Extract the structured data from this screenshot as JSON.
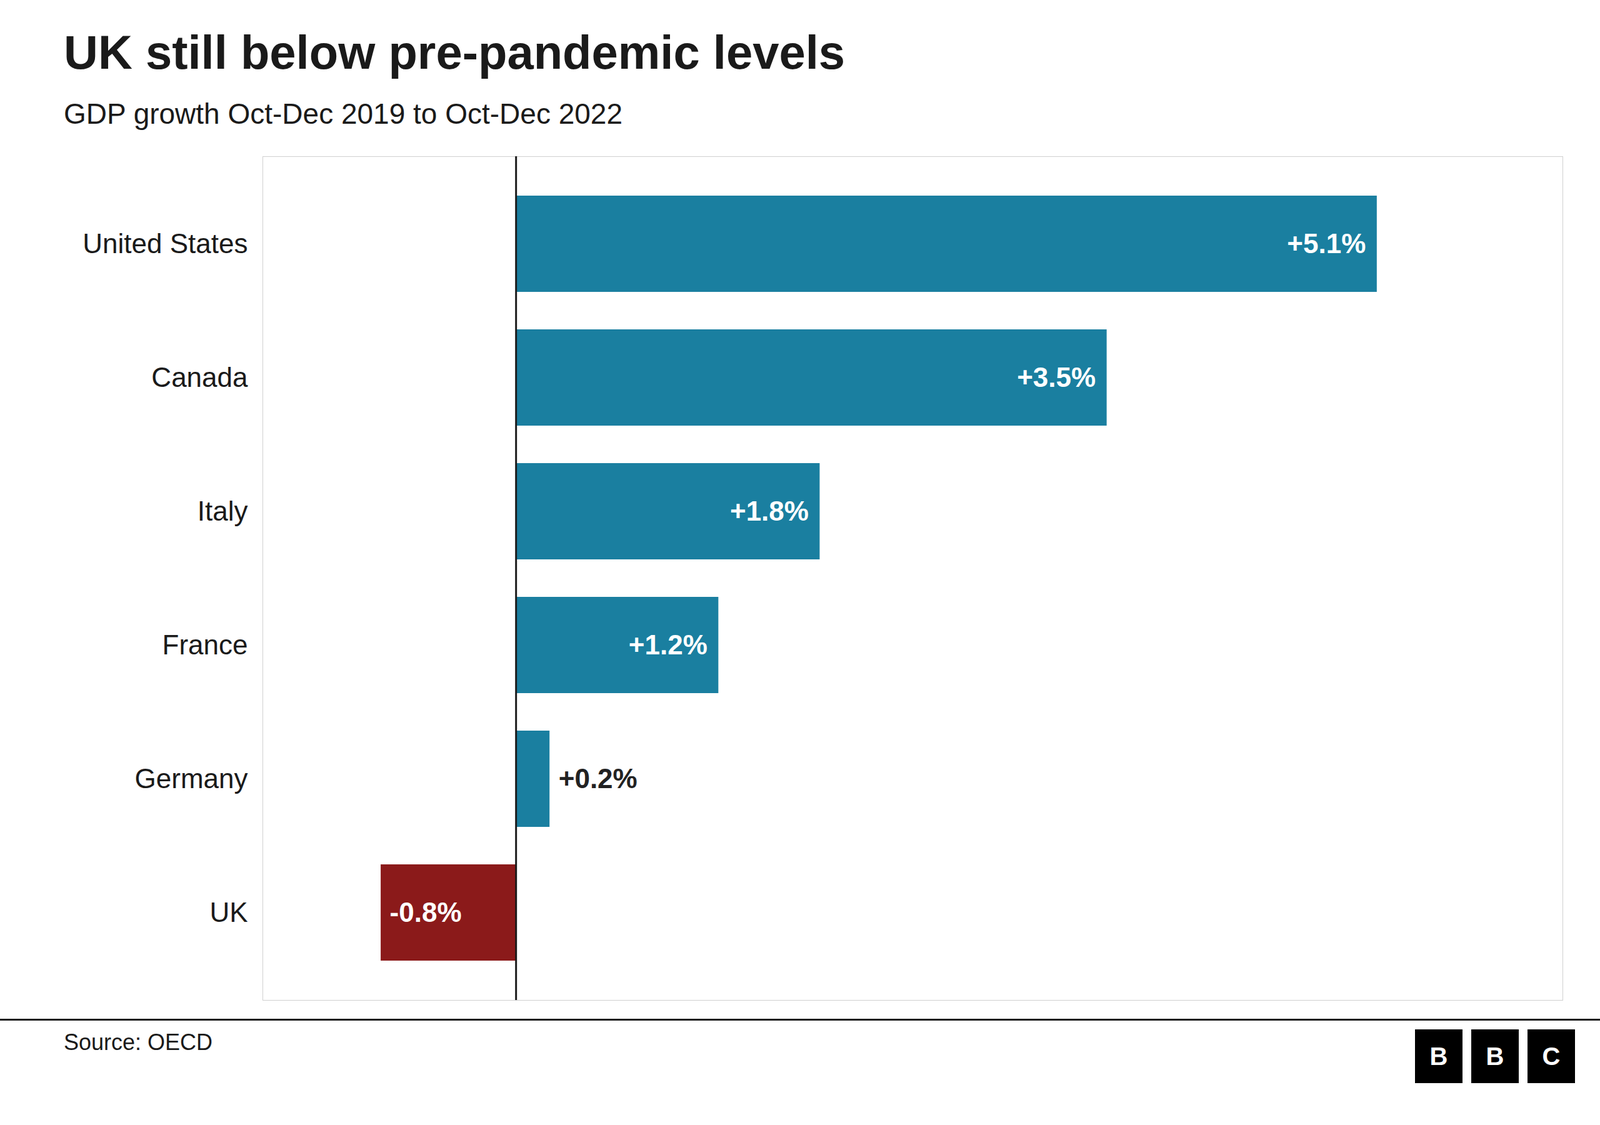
{
  "chart_data": {
    "type": "bar",
    "orientation": "horizontal",
    "title": "UK still below pre-pandemic levels",
    "subtitle": "GDP growth Oct-Dec 2019 to Oct-Dec 2022",
    "source": "Source: OECD",
    "logo": "BBC",
    "categories": [
      "United States",
      "Canada",
      "Italy",
      "France",
      "Germany",
      "UK"
    ],
    "values": [
      5.1,
      3.5,
      1.8,
      1.2,
      0.2,
      -0.8
    ],
    "value_labels": [
      "+5.1%",
      "+3.5%",
      "+1.8%",
      "+1.2%",
      "+0.2%",
      "-0.8%"
    ],
    "colors": [
      "#1a7fa0",
      "#1a7fa0",
      "#1a7fa0",
      "#1a7fa0",
      "#1a7fa0",
      "#8b1a1a"
    ],
    "data_labels": true,
    "xlim": [
      -1.5,
      6.2
    ],
    "tick_labels": "y",
    "grid": false
  }
}
